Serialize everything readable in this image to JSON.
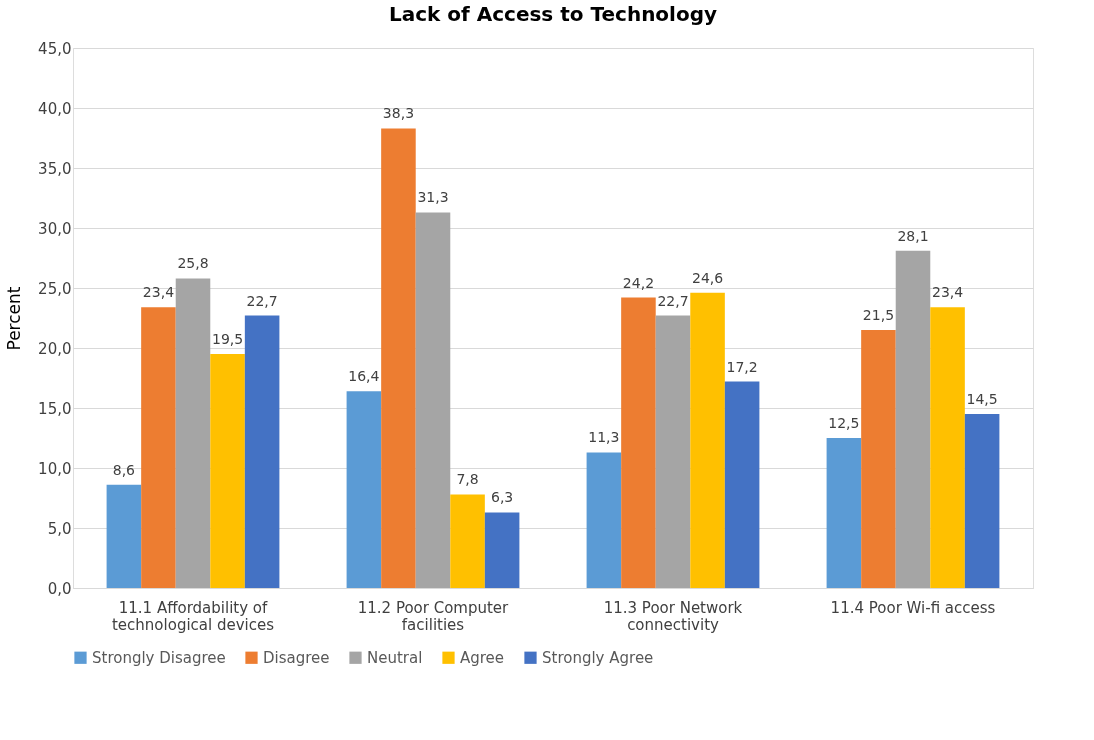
{
  "chart_data": {
    "type": "bar",
    "title": "Lack of Access to Technology",
    "ylabel": "Percent",
    "categories": [
      "11.1 Affordability of technological devices",
      "11.2 Poor Computer facilities",
      "11.3 Poor Network connectivity",
      "11.4 Poor Wi-fi access"
    ],
    "series": [
      {
        "name": "Strongly Disagree",
        "color": "#5b9bd5",
        "values": [
          8.6,
          16.4,
          11.3,
          12.5
        ],
        "value_labels": [
          "8,6",
          "16,4",
          "11,3",
          "12,5"
        ]
      },
      {
        "name": "Disagree",
        "color": "#ed7d31",
        "values": [
          23.4,
          38.3,
          24.2,
          21.5
        ],
        "value_labels": [
          "23,4",
          "38,3",
          "24,2",
          "21,5"
        ]
      },
      {
        "name": "Neutral",
        "color": "#a5a5a5",
        "values": [
          25.8,
          31.3,
          22.7,
          28.1
        ],
        "value_labels": [
          "25,8",
          "31,3",
          "22,7",
          "28,1"
        ]
      },
      {
        "name": "Agree",
        "color": "#ffc000",
        "values": [
          19.5,
          7.8,
          24.6,
          23.4
        ],
        "value_labels": [
          "19,5",
          "7,8",
          "24,6",
          "23,4"
        ]
      },
      {
        "name": "Strongly Agree",
        "color": "#4472c4",
        "values": [
          22.7,
          6.3,
          17.2,
          14.5
        ],
        "value_labels": [
          "22,7",
          "6,3",
          "17,2",
          "14,5"
        ]
      }
    ],
    "ylim": [
      0,
      45
    ],
    "yticks": [
      {
        "value": 0,
        "label": "0,0"
      },
      {
        "value": 5,
        "label": "5,0"
      },
      {
        "value": 10,
        "label": "10,0"
      },
      {
        "value": 15,
        "label": "15,0"
      },
      {
        "value": 20,
        "label": "20,0"
      },
      {
        "value": 25,
        "label": "25,0"
      },
      {
        "value": 30,
        "label": "30,0"
      },
      {
        "value": 35,
        "label": "35,0"
      },
      {
        "value": 40,
        "label": "40,0"
      },
      {
        "value": 45,
        "label": "45,0"
      }
    ],
    "grid": "y",
    "legend": "bottom"
  }
}
